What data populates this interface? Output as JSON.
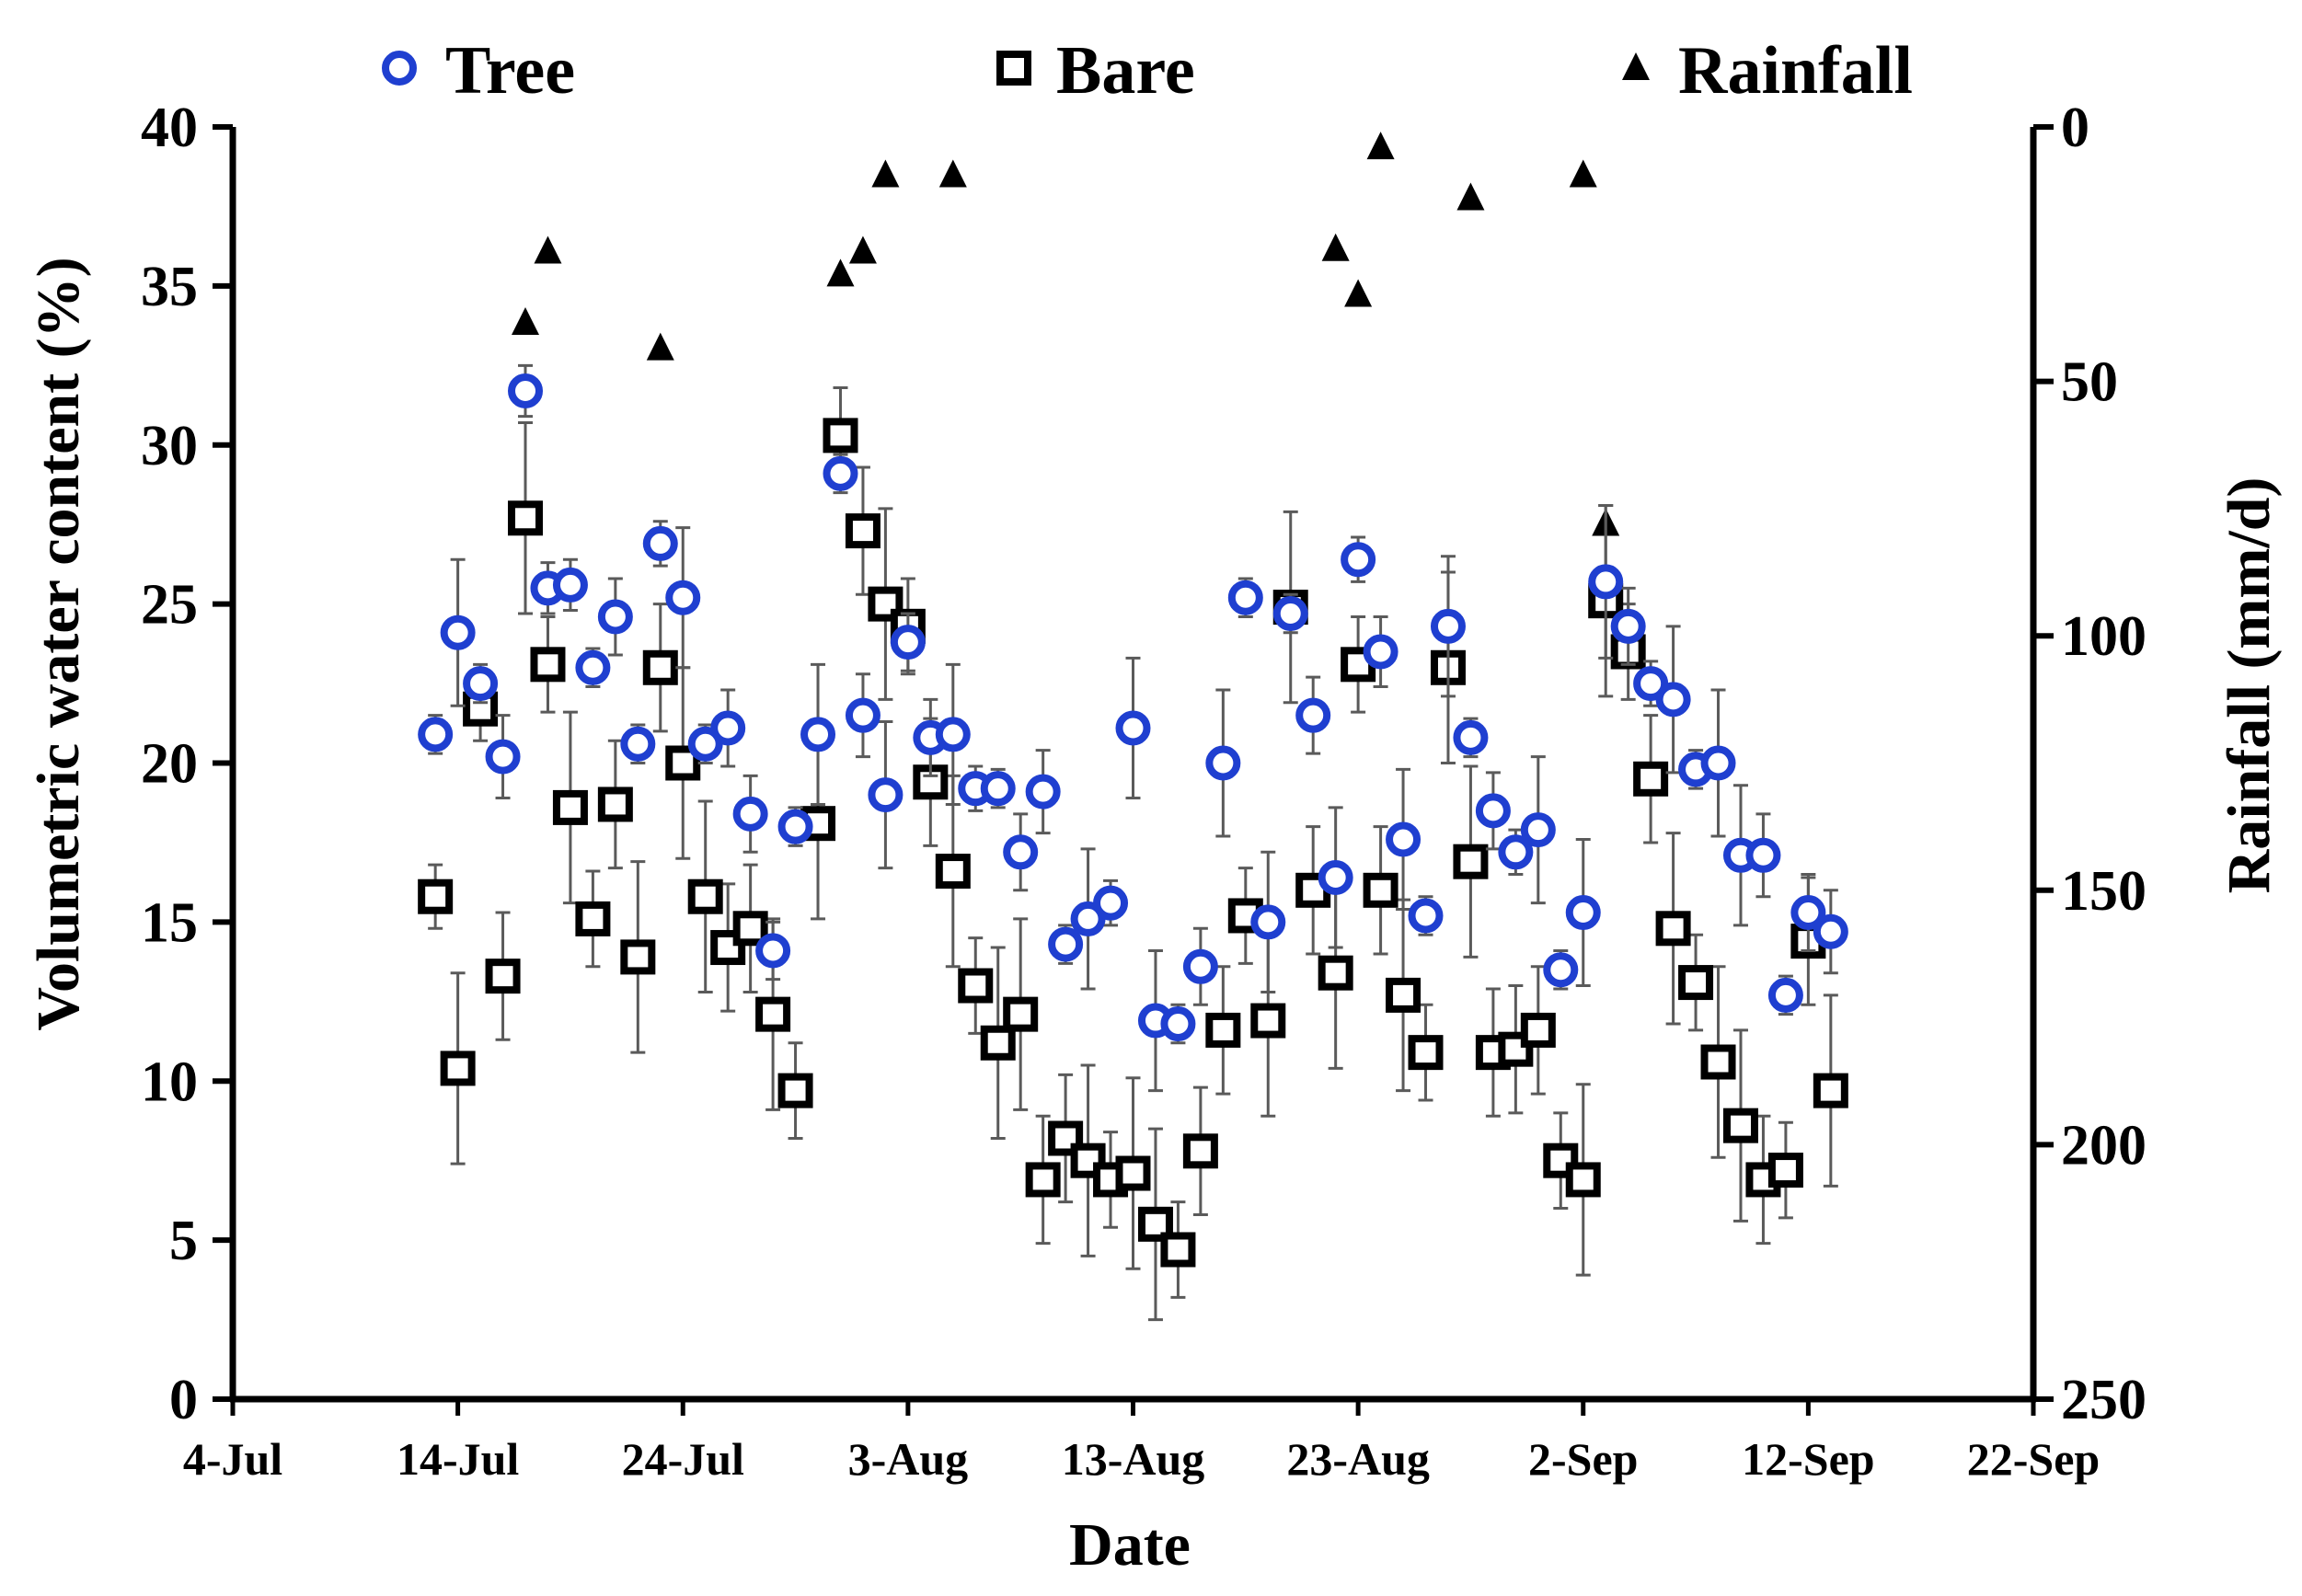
{
  "chart_data": {
    "type": "scatter",
    "title": "",
    "xlabel": "Date",
    "ylabel": "Volumetric water content (%)",
    "y2label": "Rainfall (mm/d)",
    "xlim": [
      0,
      80
    ],
    "x_origin_label": "4-Jul",
    "ylim": [
      0,
      40
    ],
    "y2lim": [
      250,
      0
    ],
    "x_ticks": [
      0,
      10,
      20,
      30,
      40,
      50,
      60,
      70,
      80
    ],
    "x_tick_labels": [
      "4-Jul",
      "14-Jul",
      "24-Jul",
      "3-Aug",
      "13-Aug",
      "23-Aug",
      "2-Sep",
      "12-Sep",
      "22-Sep"
    ],
    "y_ticks": [
      0,
      5,
      10,
      15,
      20,
      25,
      30,
      35,
      40
    ],
    "y_tick_labels": [
      "0",
      "5",
      "10",
      "15",
      "20",
      "25",
      "30",
      "35",
      "40"
    ],
    "y2_ticks": [
      0,
      50,
      100,
      150,
      200,
      250
    ],
    "y2_tick_labels": [
      "0",
      "50",
      "100",
      "150",
      "200",
      "250"
    ],
    "legend_position": "top",
    "series": [
      {
        "name": "Tree",
        "marker": "circle",
        "color": "#1f3fd0",
        "x": [
          9,
          10,
          11,
          12,
          13,
          14,
          15,
          16,
          17,
          18,
          19,
          20,
          21,
          22,
          23,
          24,
          25,
          26,
          27,
          28,
          29,
          30,
          31,
          32,
          33,
          34,
          35,
          36,
          37,
          38,
          39,
          40,
          41,
          42,
          43,
          44,
          45,
          46,
          47,
          48,
          49,
          50,
          51,
          52,
          53,
          54,
          55,
          56,
          57,
          58,
          59,
          60,
          61,
          62,
          63,
          64,
          65,
          66,
          67,
          68,
          69,
          70,
          71
        ],
        "y": [
          20.9,
          24.1,
          22.5,
          20.2,
          31.7,
          25.5,
          25.6,
          23.0,
          24.6,
          20.6,
          26.9,
          25.2,
          20.6,
          21.1,
          18.4,
          14.1,
          18.0,
          20.9,
          29.1,
          21.5,
          19.0,
          23.8,
          20.8,
          20.9,
          19.2,
          19.2,
          17.2,
          19.1,
          14.3,
          15.1,
          15.6,
          21.1,
          11.9,
          11.8,
          13.6,
          20.0,
          25.2,
          15.0,
          24.7,
          21.5,
          16.4,
          26.4,
          23.5,
          17.6,
          15.2,
          24.3,
          20.8,
          18.5,
          17.2,
          17.9,
          13.5,
          15.3,
          25.7,
          24.3,
          22.5,
          22.0,
          19.8,
          20.0,
          17.1,
          17.1,
          12.7,
          15.3,
          14.7
        ],
        "error": [
          0.6,
          2.3,
          0.6,
          1.3,
          0.8,
          0.8,
          0.8,
          0.6,
          1.2,
          0.6,
          0.7,
          2.2,
          0.6,
          1.2,
          1.2,
          0.9,
          0.6,
          2.2,
          0.6,
          1.3,
          2.3,
          0.9,
          1.2,
          2.2,
          0.7,
          0.6,
          1.2,
          1.3,
          0.6,
          2.2,
          0.7,
          2.2,
          2.2,
          0.6,
          1.2,
          2.3,
          0.6,
          2.2,
          0.6,
          1.2,
          2.2,
          0.7,
          1.1,
          2.2,
          0.6,
          2.2,
          0.6,
          1.2,
          0.7,
          2.3,
          0.6,
          2.3,
          2.4,
          1.2,
          0.7,
          2.3,
          0.6,
          2.3,
          2.2,
          1.3,
          0.6,
          1.2,
          1.3
        ]
      },
      {
        "name": "Bare",
        "marker": "square",
        "color": "#000000",
        "x": [
          9,
          10,
          11,
          12,
          13,
          14,
          15,
          16,
          17,
          18,
          19,
          20,
          21,
          22,
          23,
          24,
          25,
          26,
          27,
          28,
          29,
          30,
          31,
          32,
          33,
          34,
          35,
          36,
          37,
          38,
          39,
          40,
          41,
          42,
          43,
          44,
          45,
          46,
          47,
          48,
          49,
          50,
          51,
          52,
          53,
          54,
          55,
          56,
          57,
          58,
          59,
          60,
          61,
          62,
          63,
          64,
          65,
          66,
          67,
          68,
          69,
          70,
          71
        ],
        "y": [
          15.8,
          10.4,
          21.7,
          13.3,
          27.7,
          23.1,
          18.6,
          15.1,
          18.7,
          13.9,
          23.0,
          20.0,
          15.8,
          14.2,
          14.8,
          12.1,
          9.7,
          18.1,
          30.3,
          27.3,
          25.0,
          24.3,
          19.4,
          16.6,
          13.0,
          11.2,
          12.1,
          6.9,
          8.2,
          7.5,
          6.9,
          7.1,
          5.5,
          4.7,
          7.8,
          11.6,
          15.2,
          11.9,
          24.9,
          16.0,
          13.4,
          23.1,
          16.0,
          12.7,
          10.9,
          23.0,
          16.9,
          10.9,
          11.0,
          11.6,
          7.5,
          6.9,
          25.1,
          23.5,
          19.5,
          14.8,
          13.1,
          10.6,
          8.6,
          6.9,
          7.2,
          14.4,
          9.7
        ],
        "error": [
          1.0,
          3.0,
          1.0,
          2.0,
          3.0,
          1.5,
          3.0,
          1.5,
          2.0,
          3.0,
          2.0,
          3.0,
          3.0,
          2.0,
          2.0,
          3.0,
          1.5,
          3.0,
          1.5,
          2.0,
          3.0,
          1.5,
          2.0,
          3.0,
          1.5,
          3.0,
          3.0,
          2.0,
          2.0,
          3.0,
          1.5,
          3.0,
          3.0,
          1.5,
          2.0,
          2.0,
          1.5,
          3.0,
          3.0,
          2.0,
          3.0,
          1.5,
          2.0,
          3.0,
          1.5,
          3.0,
          3.0,
          2.0,
          2.0,
          2.0,
          1.5,
          3.0,
          3.0,
          1.5,
          2.0,
          3.0,
          1.5,
          3.0,
          3.0,
          2.0,
          1.5,
          2.0,
          3.0
        ]
      },
      {
        "name": "Rainfall",
        "marker": "triangle",
        "color": "#000000",
        "axis": "right",
        "x": [
          13,
          14,
          19,
          27,
          28,
          29,
          32,
          49,
          50,
          51,
          55,
          60,
          61
        ],
        "y": [
          38.5,
          24.5,
          43.5,
          29.0,
          24.5,
          9.5,
          9.5,
          24.0,
          33.0,
          4.0,
          14.0,
          9.5,
          78.0
        ]
      }
    ]
  }
}
